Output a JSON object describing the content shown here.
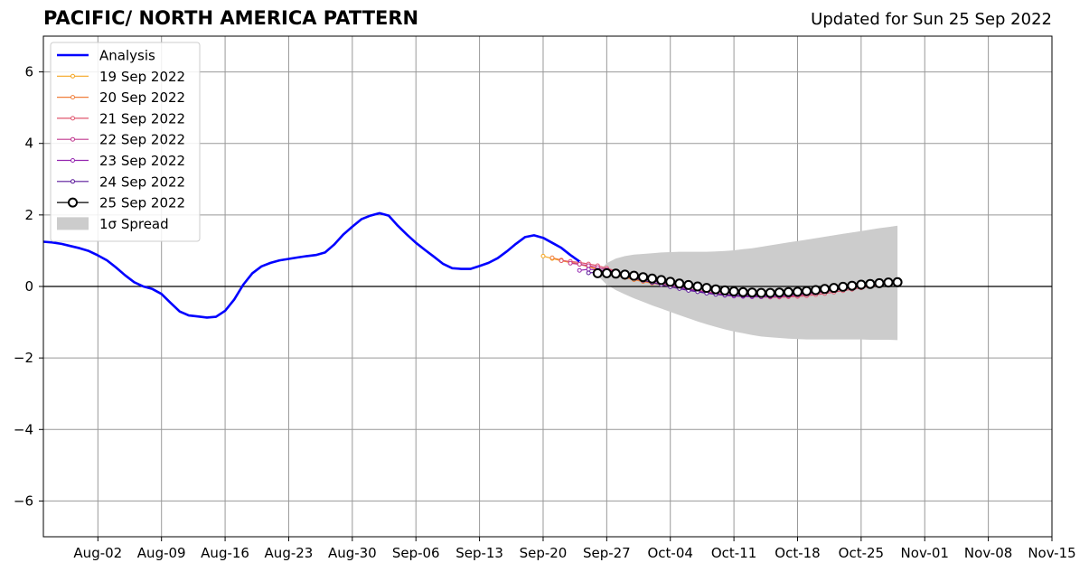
{
  "chart_data": {
    "type": "line",
    "title": "PACIFIC/ NORTH AMERICA PATTERN",
    "subtitle": "Updated for Sun 25 Sep 2022",
    "xlabel": "",
    "ylabel": "",
    "ylim": [
      -7,
      7
    ],
    "yticks": [
      -6,
      -4,
      -2,
      0,
      2,
      4,
      6
    ],
    "xlim": [
      "2022-07-27",
      "2022-11-15"
    ],
    "xticks": [
      "2022-08-02",
      "2022-08-09",
      "2022-08-16",
      "2022-08-23",
      "2022-08-30",
      "2022-09-06",
      "2022-09-13",
      "2022-09-20",
      "2022-09-27",
      "2022-10-04",
      "2022-10-11",
      "2022-10-18",
      "2022-10-25",
      "2022-11-01",
      "2022-11-08",
      "2022-11-15"
    ],
    "xtick_labels": [
      "Aug-02",
      "Aug-09",
      "Aug-16",
      "Aug-23",
      "Aug-30",
      "Sep-06",
      "Sep-13",
      "Sep-20",
      "Sep-27",
      "Oct-04",
      "Oct-11",
      "Oct-18",
      "Oct-25",
      "Nov-01",
      "Nov-08",
      "Nov-15"
    ],
    "grid": true,
    "legend_position": "top-left",
    "analysis": {
      "name": "Analysis",
      "color": "#0000ff",
      "start": "2022-07-27",
      "values": [
        1.25,
        1.23,
        1.19,
        1.13,
        1.07,
        0.99,
        0.87,
        0.73,
        0.53,
        0.31,
        0.12,
        0.0,
        -0.07,
        -0.21,
        -0.46,
        -0.7,
        -0.81,
        -0.84,
        -0.87,
        -0.85,
        -0.68,
        -0.37,
        0.05,
        0.37,
        0.56,
        0.66,
        0.73,
        0.77,
        0.81,
        0.85,
        0.88,
        0.95,
        1.17,
        1.45,
        1.67,
        1.88,
        1.98,
        2.05,
        1.98,
        1.7,
        1.45,
        1.22,
        1.02,
        0.83,
        0.63,
        0.51,
        0.49,
        0.49,
        0.57,
        0.66,
        0.79,
        0.98,
        1.19,
        1.38,
        1.43,
        1.36,
        1.22,
        1.08,
        0.88,
        0.7
      ]
    },
    "forecasts": [
      {
        "name": "19 Sep 2022",
        "color": "#f5a623",
        "start": "2022-09-20",
        "values": [
          0.85,
          0.78,
          0.72,
          0.67,
          0.62,
          0.56,
          0.48,
          0.4,
          0.32,
          0.25,
          0.2,
          0.15,
          0.1,
          0.06,
          0.02,
          -0.02
        ]
      },
      {
        "name": "20 Sep 2022",
        "color": "#f07f3c",
        "start": "2022-09-21",
        "values": [
          0.8,
          0.74,
          0.68,
          0.62,
          0.55,
          0.47,
          0.39,
          0.31,
          0.25,
          0.19,
          0.14,
          0.09,
          0.05,
          0.01
        ]
      },
      {
        "name": "21 Sep 2022",
        "color": "#e0566e",
        "start": "2022-09-22",
        "values": [
          0.72,
          0.7,
          0.67,
          0.63,
          0.58,
          0.51,
          0.43,
          0.35,
          0.28,
          0.22,
          0.16,
          0.1,
          0.04,
          -0.02,
          -0.07,
          -0.11,
          -0.15,
          -0.19,
          -0.22,
          -0.25,
          -0.27,
          -0.28,
          -0.29,
          -0.3,
          -0.3,
          -0.29,
          -0.28,
          -0.26,
          -0.23,
          -0.2,
          -0.16,
          -0.12,
          -0.08,
          -0.04,
          0.0,
          0.03
        ]
      },
      {
        "name": "22 Sep 2022",
        "color": "#c0388f",
        "start": "2022-09-23",
        "values": [
          0.65,
          0.62,
          0.58,
          0.53,
          0.47,
          0.41,
          0.35,
          0.28,
          0.22,
          0.16,
          0.1,
          0.04,
          -0.02,
          -0.07,
          -0.12,
          -0.16,
          -0.2,
          -0.23,
          -0.25,
          -0.27,
          -0.28,
          -0.29,
          -0.29,
          -0.28,
          -0.27,
          -0.25,
          -0.22,
          -0.19,
          -0.15,
          -0.11,
          -0.07,
          -0.03,
          0.01,
          0.05
        ]
      },
      {
        "name": "23 Sep 2022",
        "color": "#9426b0",
        "start": "2022-09-24",
        "values": [
          0.45,
          0.48,
          0.46,
          0.43,
          0.39,
          0.34,
          0.28,
          0.22,
          0.16,
          0.1,
          0.04,
          -0.02,
          -0.08,
          -0.13,
          -0.18,
          -0.22,
          -0.25,
          -0.27,
          -0.28,
          -0.29,
          -0.29,
          -0.28,
          -0.27,
          -0.25,
          -0.22,
          -0.19,
          -0.16,
          -0.12,
          -0.08,
          -0.04,
          0.0,
          0.03
        ]
      },
      {
        "name": "24 Sep 2022",
        "color": "#5a189a",
        "start": "2022-09-25",
        "values": [
          0.38,
          0.4,
          0.38,
          0.34,
          0.29,
          0.23,
          0.17,
          0.11,
          0.05,
          -0.01,
          -0.06,
          -0.11,
          -0.15,
          -0.19,
          -0.22,
          -0.24,
          -0.25,
          -0.26,
          -0.26,
          -0.25,
          -0.24,
          -0.22,
          -0.19,
          -0.16,
          -0.12,
          -0.08,
          -0.04,
          0.0,
          0.03,
          0.06
        ]
      },
      {
        "name": "25 Sep 2022",
        "color": "#000000",
        "start": "2022-09-26",
        "values": [
          0.37,
          0.37,
          0.36,
          0.33,
          0.3,
          0.26,
          0.22,
          0.18,
          0.13,
          0.08,
          0.04,
          0.0,
          -0.04,
          -0.08,
          -0.11,
          -0.14,
          -0.16,
          -0.17,
          -0.18,
          -0.18,
          -0.17,
          -0.16,
          -0.15,
          -0.13,
          -0.1,
          -0.07,
          -0.04,
          -0.01,
          0.02,
          0.05,
          0.07,
          0.09,
          0.11,
          0.12
        ]
      }
    ],
    "spread": {
      "name": "1σ Spread",
      "color": "#cccccc",
      "start": "2022-09-26",
      "upper": [
        0.4,
        0.65,
        0.78,
        0.85,
        0.89,
        0.91,
        0.93,
        0.95,
        0.96,
        0.97,
        0.97,
        0.97,
        0.97,
        0.98,
        0.99,
        1.01,
        1.04,
        1.07,
        1.11,
        1.15,
        1.19,
        1.23,
        1.27,
        1.31,
        1.35,
        1.39,
        1.43,
        1.47,
        1.51,
        1.55,
        1.59,
        1.63,
        1.66,
        1.7
      ],
      "lower": [
        0.3,
        0.05,
        -0.1,
        -0.22,
        -0.33,
        -0.43,
        -0.53,
        -0.62,
        -0.71,
        -0.8,
        -0.89,
        -0.98,
        -1.06,
        -1.13,
        -1.2,
        -1.26,
        -1.31,
        -1.36,
        -1.4,
        -1.42,
        -1.44,
        -1.46,
        -1.47,
        -1.48,
        -1.48,
        -1.48,
        -1.48,
        -1.48,
        -1.48,
        -1.48,
        -1.49,
        -1.49,
        -1.49,
        -1.5
      ]
    }
  }
}
